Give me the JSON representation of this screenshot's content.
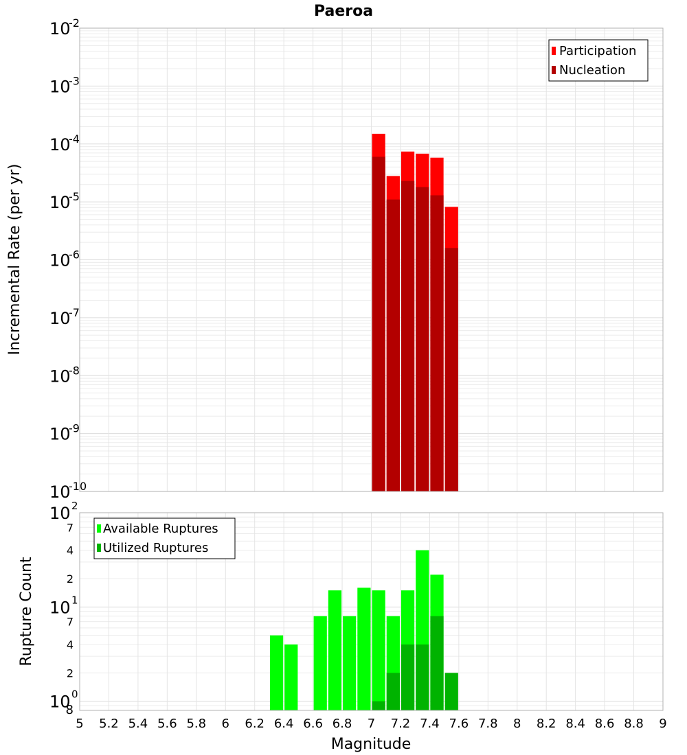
{
  "chart_data": [
    {
      "type": "bar",
      "title": "Paeroa",
      "ylabel": "Incremental Rate (per yr)",
      "xlim": [
        5,
        9
      ],
      "ylim": [
        1e-10,
        0.01
      ],
      "yscale": "log",
      "grid": true,
      "legend": "top-right",
      "bin_width": 0.1,
      "x": [
        7.05,
        7.15,
        7.25,
        7.35,
        7.45,
        7.55
      ],
      "series": [
        {
          "name": "Participation",
          "color": "#ff0000",
          "values": [
            0.00015,
            2.8e-05,
            7.4e-05,
            6.8e-05,
            5.8e-05,
            8.2e-06
          ]
        },
        {
          "name": "Nucleation",
          "color": "#b30000",
          "values": [
            6e-05,
            1.1e-05,
            2.3e-05,
            1.8e-05,
            1.3e-05,
            1.6e-06
          ]
        }
      ],
      "ytick_bases": [
        "10",
        "10",
        "10",
        "10",
        "10",
        "10",
        "10",
        "10",
        "10"
      ],
      "ytick_exps": [
        "-10",
        "-9",
        "-8",
        "-7",
        "-6",
        "-5",
        "-4",
        "-3",
        "-2"
      ]
    },
    {
      "type": "bar",
      "ylabel": "Rupture Count",
      "xlabel": "Magnitude",
      "xlim": [
        5,
        9
      ],
      "ylim": [
        0.8,
        100
      ],
      "yscale": "log",
      "grid": true,
      "legend": "top-left",
      "bin_width": 0.1,
      "x": [
        6.35,
        6.45,
        6.65,
        6.75,
        6.85,
        6.95,
        7.05,
        7.15,
        7.25,
        7.35,
        7.45,
        7.55
      ],
      "series": [
        {
          "name": "Available Ruptures",
          "color": "#00ff00",
          "values": [
            5,
            4,
            8,
            15,
            8,
            16,
            15,
            8,
            15,
            40,
            22,
            0
          ]
        },
        {
          "name": "Utilized Ruptures",
          "color": "#00b300",
          "values": [
            0,
            0,
            0,
            0,
            0,
            0,
            1,
            2,
            4,
            4,
            8,
            2
          ]
        }
      ],
      "ytick_labels": [
        {
          "v": 0.8,
          "t": "8"
        },
        {
          "v": 2,
          "t": "2"
        },
        {
          "v": 4,
          "t": "4"
        },
        {
          "v": 7,
          "t": "7"
        },
        {
          "v": 20,
          "t": "2"
        },
        {
          "v": 40,
          "t": "4"
        },
        {
          "v": 70,
          "t": "7"
        }
      ],
      "ytick_powers": [
        {
          "v": 1,
          "base": "10",
          "exp": "0"
        },
        {
          "v": 10,
          "base": "10",
          "exp": "1"
        },
        {
          "v": 100,
          "base": "10",
          "exp": "2"
        }
      ],
      "xtick_labels": [
        "5",
        "5.2",
        "5.4",
        "5.6",
        "5.8",
        "6",
        "6.2",
        "6.4",
        "6.6",
        "6.8",
        "7",
        "7.2",
        "7.4",
        "7.6",
        "7.8",
        "8",
        "8.2",
        "8.4",
        "8.6",
        "8.8",
        "9"
      ]
    }
  ]
}
